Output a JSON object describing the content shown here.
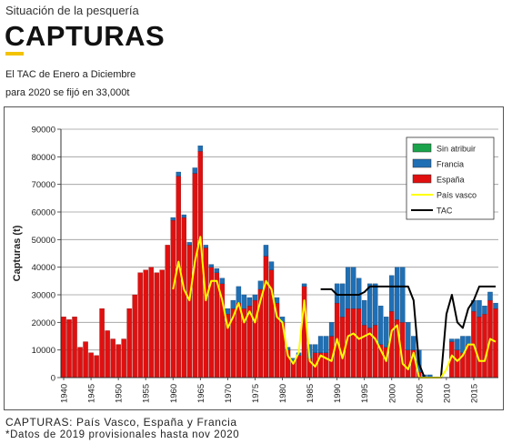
{
  "header": {
    "subtitle": "Situación de la pesquería",
    "title": "CAPTURAS",
    "tac_note_line1": "El TAC de Enero a Diciembre",
    "tac_note_line2": "para 2020 se fijó en 33,000t"
  },
  "footer": {
    "line1": "CAPTURAS: País Vasco, España y Francia",
    "line2": "*Datos de 2019 provisionales hasta nov 2020"
  },
  "colors": {
    "sin_atribuir": "#1aa34a",
    "francia": "#1f6fb5",
    "espana": "#e01010",
    "pais_vasco": "#ffff00",
    "tac": "#000000"
  },
  "chart_data": {
    "type": "bar",
    "stacked": true,
    "ylabel": "Capturas (t)",
    "xlabel": "",
    "ylim": [
      0,
      90000
    ],
    "yticks": [
      "0",
      "10000",
      "20000",
      "30000",
      "40000",
      "50000",
      "60000",
      "70000",
      "80000",
      "90000"
    ],
    "xticks": [
      "1940",
      "1945",
      "1950",
      "1955",
      "1960",
      "1965",
      "1970",
      "1975",
      "1980",
      "1985",
      "1990",
      "1995",
      "2000",
      "2005",
      "2010",
      "2015"
    ],
    "years": [
      1940,
      1941,
      1942,
      1943,
      1944,
      1945,
      1946,
      1947,
      1948,
      1949,
      1950,
      1951,
      1952,
      1953,
      1954,
      1955,
      1956,
      1957,
      1958,
      1959,
      1960,
      1961,
      1962,
      1963,
      1964,
      1965,
      1966,
      1967,
      1968,
      1969,
      1970,
      1971,
      1972,
      1973,
      1974,
      1975,
      1976,
      1977,
      1978,
      1979,
      1980,
      1981,
      1982,
      1983,
      1984,
      1985,
      1986,
      1987,
      1988,
      1989,
      1990,
      1991,
      1992,
      1993,
      1994,
      1995,
      1996,
      1997,
      1998,
      1999,
      2000,
      2001,
      2002,
      2003,
      2004,
      2005,
      2006,
      2007,
      2008,
      2009,
      2010,
      2011,
      2012,
      2013,
      2014,
      2015,
      2016,
      2017,
      2018,
      2019
    ],
    "grid": "horizontal",
    "legend_position": "top-right",
    "series": [
      {
        "name": "Sin atribuir",
        "kind": "bar",
        "values": [
          0,
          0,
          0,
          0,
          0,
          0,
          0,
          0,
          0,
          0,
          0,
          0,
          0,
          0,
          0,
          0,
          0,
          0,
          0,
          0,
          0,
          0,
          0,
          0,
          0,
          0,
          0,
          0,
          0,
          0,
          0,
          0,
          0,
          0,
          0,
          0,
          0,
          0,
          0,
          0,
          0,
          0,
          0,
          0,
          0,
          0,
          0,
          0,
          0,
          0,
          0,
          0,
          0,
          0,
          0,
          0,
          0,
          0,
          0,
          0,
          0,
          0,
          0,
          0,
          0,
          0,
          0,
          0,
          0,
          0,
          0,
          0,
          0,
          0,
          0,
          0,
          0,
          0,
          0,
          0
        ]
      },
      {
        "name": "Francia",
        "kind": "bar",
        "values": [
          0,
          0,
          0,
          0,
          0,
          0,
          0,
          0,
          0,
          0,
          0,
          0,
          0,
          0,
          0,
          0,
          0,
          0,
          0,
          0,
          1000,
          1500,
          1000,
          1000,
          2000,
          2000,
          1000,
          1000,
          1500,
          2000,
          2000,
          3000,
          6000,
          5000,
          3000,
          2000,
          3000,
          4000,
          3000,
          2000,
          2000,
          1000,
          1000,
          1000,
          1000,
          5000,
          3000,
          6000,
          6000,
          5000,
          7000,
          12000,
          15000,
          15000,
          11000,
          9000,
          16000,
          15000,
          14000,
          11000,
          13000,
          19000,
          20000,
          10000,
          5000,
          8000,
          1000,
          1000,
          0,
          0,
          0,
          1000,
          4000,
          6000,
          3000,
          4000,
          6000,
          3000,
          3000,
          2000
        ]
      },
      {
        "name": "España",
        "kind": "bar",
        "values": [
          22000,
          21000,
          22000,
          11000,
          13000,
          9000,
          8000,
          25000,
          17000,
          14000,
          12000,
          14000,
          25000,
          30000,
          38000,
          39000,
          40000,
          38000,
          39000,
          48000,
          57000,
          73000,
          58000,
          48000,
          74000,
          82000,
          47000,
          40000,
          38000,
          34000,
          23000,
          25000,
          27000,
          25000,
          26000,
          28000,
          32000,
          44000,
          39000,
          27000,
          20000,
          10000,
          6000,
          8000,
          33000,
          7000,
          9000,
          9000,
          9000,
          15000,
          27000,
          22000,
          25000,
          25000,
          25000,
          19000,
          18000,
          19000,
          12000,
          11000,
          24000,
          21000,
          20000,
          10000,
          10000,
          2000,
          0,
          0,
          0,
          0,
          0,
          13000,
          10000,
          9000,
          12000,
          24000,
          22000,
          23000,
          28000,
          25000
        ]
      },
      {
        "name": "País vasco",
        "kind": "line",
        "years": [
          1960,
          1961,
          1962,
          1963,
          1964,
          1965,
          1966,
          1967,
          1968,
          1969,
          1970,
          1971,
          1972,
          1973,
          1974,
          1975,
          1976,
          1977,
          1978,
          1979,
          1980,
          1981,
          1982,
          1983,
          1984,
          1985,
          1986,
          1987,
          1988,
          1989,
          1990,
          1991,
          1992,
          1993,
          1994,
          1995,
          1996,
          1997,
          1998,
          1999,
          2000,
          2001,
          2002,
          2003,
          2004,
          2005,
          2006,
          2007,
          2008,
          2009,
          2010,
          2011,
          2012,
          2013,
          2014,
          2015,
          2016,
          2017,
          2018,
          2019
        ],
        "values": [
          32000,
          42000,
          32000,
          28000,
          42000,
          51000,
          28000,
          35000,
          35000,
          28000,
          18000,
          22000,
          27000,
          20000,
          24000,
          20000,
          28000,
          35000,
          32000,
          22000,
          20000,
          8000,
          5000,
          9000,
          28000,
          6000,
          4000,
          8000,
          7000,
          6000,
          14000,
          7000,
          15000,
          16000,
          14000,
          15000,
          16000,
          14000,
          10000,
          6000,
          17000,
          19000,
          5000,
          3000,
          9000,
          0,
          0,
          0,
          0,
          0,
          3000,
          8000,
          6000,
          8000,
          12000,
          12000,
          6000,
          6000,
          14000,
          13000
        ]
      },
      {
        "name": "TAC",
        "kind": "line",
        "years": [
          1987,
          1988,
          1989,
          1990,
          1991,
          1992,
          1993,
          1994,
          1995,
          1996,
          1997,
          1998,
          1999,
          2000,
          2001,
          2002,
          2003,
          2004,
          2005,
          2006,
          2007,
          2008,
          2009,
          2010,
          2011,
          2012,
          2013,
          2014,
          2015,
          2016,
          2017,
          2018,
          2019
        ],
        "values": [
          32000,
          32000,
          32000,
          30000,
          30000,
          30000,
          30000,
          30000,
          31000,
          33000,
          33000,
          33000,
          33000,
          33000,
          33000,
          33000,
          33000,
          28000,
          5000,
          0,
          0,
          0,
          0,
          23000,
          30000,
          20000,
          18000,
          25000,
          28000,
          33000,
          33000,
          33000,
          33000
        ]
      }
    ]
  }
}
